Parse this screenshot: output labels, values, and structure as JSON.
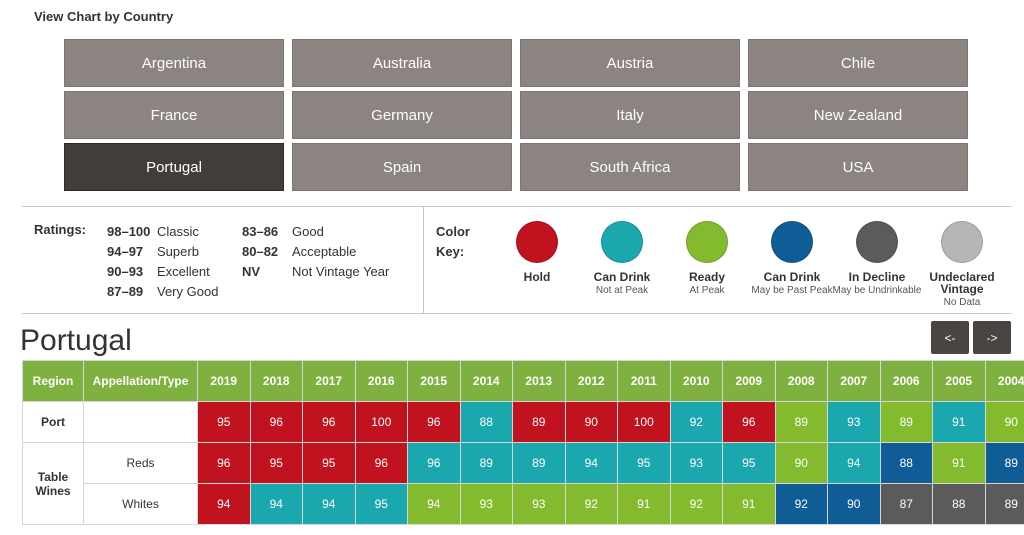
{
  "view_title": "View Chart by Country",
  "countries": [
    {
      "label": "Argentina",
      "active": false
    },
    {
      "label": "Australia",
      "active": false
    },
    {
      "label": "Austria",
      "active": false
    },
    {
      "label": "Chile",
      "active": false
    },
    {
      "label": "France",
      "active": false
    },
    {
      "label": "Germany",
      "active": false
    },
    {
      "label": "Italy",
      "active": false
    },
    {
      "label": "New Zealand",
      "active": false
    },
    {
      "label": "Portugal",
      "active": true
    },
    {
      "label": "Spain",
      "active": false
    },
    {
      "label": "South Africa",
      "active": false
    },
    {
      "label": "USA",
      "active": false
    }
  ],
  "ratings": {
    "label": "Ratings:",
    "col1": [
      {
        "score": "98–100",
        "text": "Classic"
      },
      {
        "score": "94–97",
        "text": "Superb"
      },
      {
        "score": "90–93",
        "text": "Excellent"
      },
      {
        "score": "87–89",
        "text": "Very Good"
      }
    ],
    "col2": [
      {
        "score": "83–86",
        "text": "Good"
      },
      {
        "score": "80–82",
        "text": "Acceptable"
      },
      {
        "score": "NV",
        "text": "Not Vintage Year"
      }
    ]
  },
  "color_key": {
    "label": "Color Key:",
    "items": [
      {
        "key": "hold",
        "name": "Hold",
        "desc": "",
        "color": "#c0121f"
      },
      {
        "key": "can-drink-not-peak",
        "name": "Can Drink",
        "desc": "Not at Peak",
        "color": "#1aa7ad"
      },
      {
        "key": "ready",
        "name": "Ready",
        "desc": "At Peak",
        "color": "#84ba2e"
      },
      {
        "key": "can-drink-past-peak",
        "name": "Can Drink",
        "desc": "May be Past Peak",
        "color": "#0f5c97"
      },
      {
        "key": "in-decline",
        "name": "In Decline",
        "desc": "May be Undrinkable",
        "color": "#5b5b5b"
      },
      {
        "key": "undeclared",
        "name": "Undeclared Vintage",
        "desc": "No Data",
        "color": "#b6b6b6"
      }
    ]
  },
  "country_heading": "Portugal",
  "nav": {
    "prev": "<-",
    "next": "->"
  },
  "table": {
    "headers": {
      "region": "Region",
      "appellation": "Appellation/Type"
    },
    "years": [
      "2019",
      "2018",
      "2017",
      "2016",
      "2015",
      "2014",
      "2013",
      "2012",
      "2011",
      "2010",
      "2009",
      "2008",
      "2007",
      "2006",
      "2005",
      "2004"
    ],
    "rows": [
      {
        "region": "Port",
        "appellation": "",
        "cells": [
          {
            "v": "95",
            "k": "hold"
          },
          {
            "v": "96",
            "k": "hold"
          },
          {
            "v": "96",
            "k": "hold"
          },
          {
            "v": "100",
            "k": "hold"
          },
          {
            "v": "96",
            "k": "hold"
          },
          {
            "v": "88",
            "k": "can-drink-not-peak"
          },
          {
            "v": "89",
            "k": "hold"
          },
          {
            "v": "90",
            "k": "hold"
          },
          {
            "v": "100",
            "k": "hold"
          },
          {
            "v": "92",
            "k": "can-drink-not-peak"
          },
          {
            "v": "96",
            "k": "hold"
          },
          {
            "v": "89",
            "k": "ready"
          },
          {
            "v": "93",
            "k": "can-drink-not-peak"
          },
          {
            "v": "89",
            "k": "ready"
          },
          {
            "v": "91",
            "k": "can-drink-not-peak"
          },
          {
            "v": "90",
            "k": "ready"
          }
        ]
      },
      {
        "region": "Table Wines",
        "appellation": "Reds",
        "cells": [
          {
            "v": "96",
            "k": "hold"
          },
          {
            "v": "95",
            "k": "hold"
          },
          {
            "v": "95",
            "k": "hold"
          },
          {
            "v": "96",
            "k": "hold"
          },
          {
            "v": "96",
            "k": "can-drink-not-peak"
          },
          {
            "v": "89",
            "k": "can-drink-not-peak"
          },
          {
            "v": "89",
            "k": "can-drink-not-peak"
          },
          {
            "v": "94",
            "k": "can-drink-not-peak"
          },
          {
            "v": "95",
            "k": "can-drink-not-peak"
          },
          {
            "v": "93",
            "k": "can-drink-not-peak"
          },
          {
            "v": "95",
            "k": "can-drink-not-peak"
          },
          {
            "v": "90",
            "k": "ready"
          },
          {
            "v": "94",
            "k": "can-drink-not-peak"
          },
          {
            "v": "88",
            "k": "can-drink-past-peak"
          },
          {
            "v": "91",
            "k": "ready"
          },
          {
            "v": "89",
            "k": "can-drink-past-peak"
          }
        ]
      },
      {
        "region": "",
        "appellation": "Whites",
        "cells": [
          {
            "v": "94",
            "k": "hold"
          },
          {
            "v": "94",
            "k": "can-drink-not-peak"
          },
          {
            "v": "94",
            "k": "can-drink-not-peak"
          },
          {
            "v": "95",
            "k": "can-drink-not-peak"
          },
          {
            "v": "94",
            "k": "ready"
          },
          {
            "v": "93",
            "k": "ready"
          },
          {
            "v": "93",
            "k": "ready"
          },
          {
            "v": "92",
            "k": "ready"
          },
          {
            "v": "91",
            "k": "ready"
          },
          {
            "v": "92",
            "k": "ready"
          },
          {
            "v": "91",
            "k": "ready"
          },
          {
            "v": "92",
            "k": "can-drink-past-peak"
          },
          {
            "v": "90",
            "k": "can-drink-past-peak"
          },
          {
            "v": "87",
            "k": "in-decline"
          },
          {
            "v": "88",
            "k": "in-decline"
          },
          {
            "v": "89",
            "k": "in-decline"
          }
        ]
      }
    ]
  }
}
